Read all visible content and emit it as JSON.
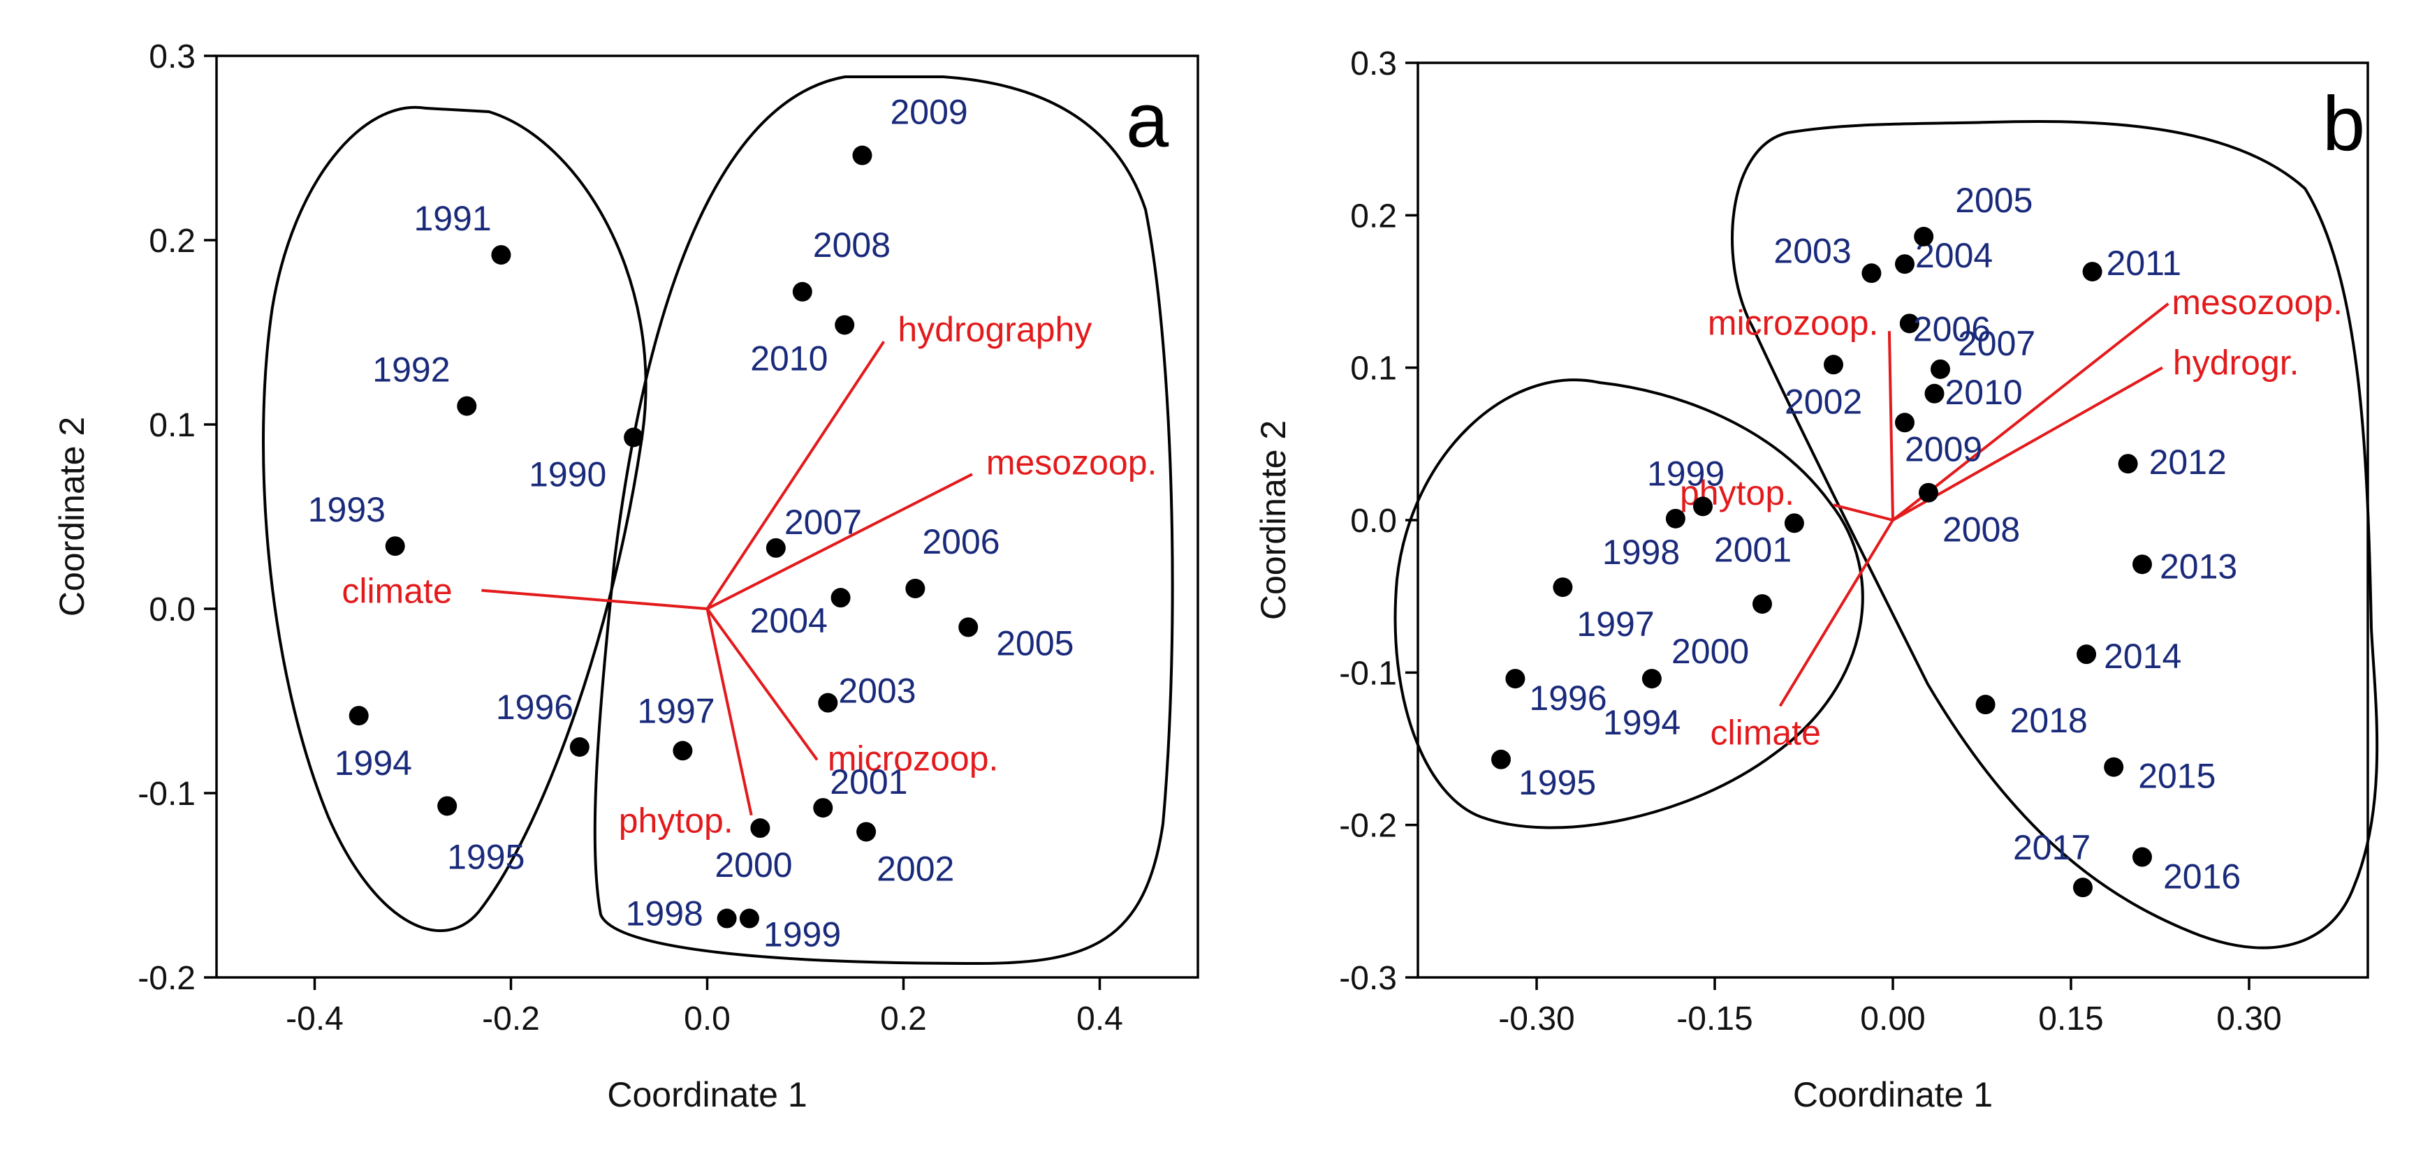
{
  "chart_data": [
    {
      "type": "scatter",
      "panel": "a",
      "xlabel": "Coordinate 1",
      "ylabel": "Coordinate 2",
      "xlim": [
        -0.5,
        0.5
      ],
      "ylim": [
        -0.2,
        0.3
      ],
      "xticks": [
        -0.4,
        -0.2,
        0.0,
        0.2,
        0.4
      ],
      "xtick_labels": [
        "-0.4",
        "-0.2",
        "0.0",
        "0.2",
        "0.4"
      ],
      "yticks": [
        -0.2,
        -0.1,
        0.0,
        0.1,
        0.2,
        0.3
      ],
      "ytick_labels": [
        "-0.2",
        "-0.1",
        "0.0",
        "0.1",
        "0.2",
        "0.3"
      ],
      "points": [
        {
          "label": "1990",
          "x": -0.075,
          "y": 0.093
        },
        {
          "label": "1991",
          "x": -0.21,
          "y": 0.192
        },
        {
          "label": "1992",
          "x": -0.245,
          "y": 0.11
        },
        {
          "label": "1993",
          "x": -0.318,
          "y": 0.034
        },
        {
          "label": "1994",
          "x": -0.355,
          "y": -0.058
        },
        {
          "label": "1995",
          "x": -0.265,
          "y": -0.107
        },
        {
          "label": "1996",
          "x": -0.13,
          "y": -0.075
        },
        {
          "label": "1997",
          "x": -0.025,
          "y": -0.077
        },
        {
          "label": "1998",
          "x": 0.02,
          "y": -0.168
        },
        {
          "label": "1999",
          "x": 0.043,
          "y": -0.168
        },
        {
          "label": "2000",
          "x": 0.054,
          "y": -0.119
        },
        {
          "label": "2001",
          "x": 0.118,
          "y": -0.108
        },
        {
          "label": "2002",
          "x": 0.162,
          "y": -0.121
        },
        {
          "label": "2003",
          "x": 0.123,
          "y": -0.051
        },
        {
          "label": "2004",
          "x": 0.136,
          "y": 0.006
        },
        {
          "label": "2005",
          "x": 0.266,
          "y": -0.01
        },
        {
          "label": "2006",
          "x": 0.212,
          "y": 0.011
        },
        {
          "label": "2007",
          "x": 0.07,
          "y": 0.033
        },
        {
          "label": "2008",
          "x": 0.097,
          "y": 0.172
        },
        {
          "label": "2009",
          "x": 0.158,
          "y": 0.246
        },
        {
          "label": "2010",
          "x": 0.14,
          "y": 0.154
        }
      ],
      "vectors": [
        {
          "label": "climate",
          "x": -0.23,
          "y": 0.01
        },
        {
          "label": "hydrography",
          "x": 0.18,
          "y": 0.145
        },
        {
          "label": "mesozoop.",
          "x": 0.27,
          "y": 0.073
        },
        {
          "label": "microzoop.",
          "x": 0.112,
          "y": -0.082
        },
        {
          "label": "phytop.",
          "x": 0.045,
          "y": -0.112
        }
      ],
      "groups": [
        {
          "name": "left",
          "members": [
            "1990",
            "1991",
            "1992",
            "1993",
            "1994",
            "1995",
            "1996"
          ]
        },
        {
          "name": "right",
          "members": [
            "1997",
            "1998",
            "1999",
            "2000",
            "2001",
            "2002",
            "2003",
            "2004",
            "2005",
            "2006",
            "2007",
            "2008",
            "2009",
            "2010"
          ]
        }
      ]
    },
    {
      "type": "scatter",
      "panel": "b",
      "xlabel": "Coordinate 1",
      "ylabel": "Coordinate 2",
      "xlim": [
        -0.4,
        0.4
      ],
      "ylim": [
        -0.3,
        0.3
      ],
      "xticks": [
        -0.3,
        -0.15,
        0.0,
        0.15,
        0.3
      ],
      "xtick_labels": [
        "-0.30",
        "-0.15",
        "0.00",
        "0.15",
        "0.30"
      ],
      "yticks": [
        -0.3,
        -0.2,
        -0.1,
        0.0,
        0.1,
        0.2,
        0.3
      ],
      "ytick_labels": [
        "-0.3",
        "-0.2",
        "-0.1",
        "0.0",
        "0.1",
        "0.2",
        "0.3"
      ],
      "points": [
        {
          "label": "1994",
          "x": -0.203,
          "y": -0.104
        },
        {
          "label": "1995",
          "x": -0.33,
          "y": -0.157
        },
        {
          "label": "1996",
          "x": -0.318,
          "y": -0.104
        },
        {
          "label": "1997",
          "x": -0.278,
          "y": -0.044
        },
        {
          "label": "1998",
          "x": -0.183,
          "y": 0.001
        },
        {
          "label": "1999",
          "x": -0.16,
          "y": 0.009
        },
        {
          "label": "2000",
          "x": -0.11,
          "y": -0.055
        },
        {
          "label": "2001",
          "x": -0.083,
          "y": -0.002
        },
        {
          "label": "2002",
          "x": -0.05,
          "y": 0.102
        },
        {
          "label": "2003",
          "x": -0.018,
          "y": 0.162
        },
        {
          "label": "2004",
          "x": 0.01,
          "y": 0.168
        },
        {
          "label": "2005",
          "x": 0.026,
          "y": 0.186
        },
        {
          "label": "2006",
          "x": 0.014,
          "y": 0.129
        },
        {
          "label": "2007",
          "x": 0.04,
          "y": 0.099
        },
        {
          "label": "2008",
          "x": 0.03,
          "y": 0.018
        },
        {
          "label": "2009",
          "x": 0.01,
          "y": 0.064
        },
        {
          "label": "2010",
          "x": 0.035,
          "y": 0.083
        },
        {
          "label": "2011",
          "x": 0.168,
          "y": 0.163
        },
        {
          "label": "2012",
          "x": 0.198,
          "y": 0.037
        },
        {
          "label": "2013",
          "x": 0.21,
          "y": -0.029
        },
        {
          "label": "2014",
          "x": 0.163,
          "y": -0.088
        },
        {
          "label": "2015",
          "x": 0.186,
          "y": -0.162
        },
        {
          "label": "2016",
          "x": 0.21,
          "y": -0.221
        },
        {
          "label": "2017",
          "x": 0.16,
          "y": -0.241
        },
        {
          "label": "2018",
          "x": 0.078,
          "y": -0.121
        }
      ],
      "vectors": [
        {
          "label": "climate",
          "x": -0.095,
          "y": -0.122
        },
        {
          "label": "microzoop.",
          "x": -0.003,
          "y": 0.124
        },
        {
          "label": "phytop.",
          "x": -0.05,
          "y": 0.01
        },
        {
          "label": "mesozoop.",
          "x": 0.232,
          "y": 0.142
        },
        {
          "label": "hydrogr.",
          "x": 0.227,
          "y": 0.1
        }
      ],
      "groups": [
        {
          "name": "left",
          "members": [
            "1994",
            "1995",
            "1996",
            "1997",
            "1998",
            "1999",
            "2000",
            "2001"
          ]
        },
        {
          "name": "right",
          "members": [
            "2002",
            "2003",
            "2004",
            "2005",
            "2006",
            "2007",
            "2008",
            "2009",
            "2010",
            "2011",
            "2012",
            "2013",
            "2014",
            "2015",
            "2016",
            "2017",
            "2018"
          ]
        }
      ]
    }
  ]
}
